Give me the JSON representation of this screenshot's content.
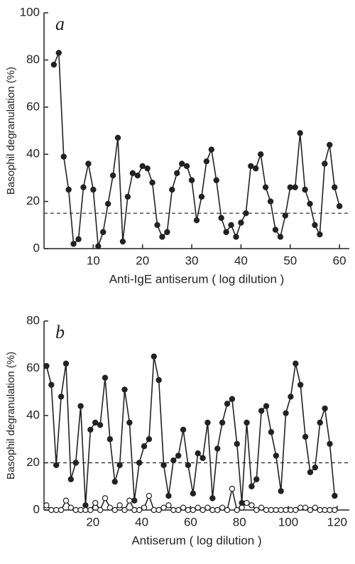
{
  "chart_data": [
    {
      "type": "line",
      "label": "a",
      "x_label": "Anti-IgE antiserum  ( log dilution )",
      "y_label": "Basophil degranulation (%)",
      "xlim": [
        0,
        62
      ],
      "xticks": [
        10,
        20,
        30,
        40,
        50,
        60
      ],
      "ylim": [
        0,
        100
      ],
      "yticks": [
        0,
        20,
        40,
        60,
        80,
        100
      ],
      "threshold": 15,
      "x": [
        2,
        3,
        4,
        5,
        6,
        7,
        8,
        9,
        10,
        11,
        12,
        13,
        14,
        15,
        16,
        17,
        18,
        19,
        20,
        21,
        22,
        23,
        24,
        25,
        26,
        27,
        28,
        29,
        30,
        31,
        32,
        33,
        34,
        35,
        36,
        37,
        38,
        39,
        40,
        41,
        42,
        43,
        44,
        45,
        46,
        47,
        48,
        49,
        50,
        51,
        52,
        53,
        54,
        55,
        56,
        57,
        58,
        59,
        60
      ],
      "series": [
        {
          "color": "#222",
          "marker_fill": "#222",
          "values": [
            78,
            83,
            39,
            25,
            2,
            4,
            26,
            36,
            25,
            1,
            7,
            19,
            31,
            47,
            3,
            22,
            32,
            31,
            35,
            34,
            28,
            10,
            5,
            7,
            25,
            32,
            36,
            35,
            29,
            12,
            22,
            37,
            42,
            29,
            13,
            7,
            10,
            5,
            11,
            15,
            35,
            34,
            40,
            26,
            20,
            8,
            5,
            14,
            26,
            26,
            49,
            25,
            19,
            10,
            6,
            36,
            44,
            26,
            18
          ]
        }
      ]
    },
    {
      "type": "line",
      "label": "b",
      "x_label": "Antiserum  ( log dilution )",
      "y_label": "Basophil degranulation (%)",
      "xlim": [
        0,
        125
      ],
      "xticks": [
        20,
        40,
        60,
        80,
        100,
        120
      ],
      "ylim": [
        0,
        80
      ],
      "yticks": [
        0,
        20,
        40,
        60,
        80
      ],
      "threshold": 20,
      "x": [
        1,
        3,
        5,
        7,
        9,
        11,
        13,
        15,
        17,
        19,
        21,
        23,
        25,
        27,
        29,
        31,
        33,
        35,
        37,
        39,
        41,
        43,
        45,
        47,
        49,
        51,
        53,
        55,
        57,
        59,
        61,
        63,
        65,
        67,
        69,
        71,
        73,
        75,
        77,
        79,
        81,
        83,
        85,
        87,
        89,
        91,
        93,
        95,
        97,
        99,
        101,
        103,
        105,
        107,
        109,
        111,
        113,
        115,
        117,
        119
      ],
      "series": [
        {
          "color": "#222",
          "marker_fill": "#222",
          "values": [
            61,
            53,
            19,
            48,
            62,
            13,
            20,
            44,
            2,
            34,
            37,
            36,
            56,
            30,
            12,
            19,
            51,
            37,
            4,
            20,
            27,
            30,
            65,
            55,
            19,
            6,
            21,
            23,
            34,
            19,
            7,
            24,
            22,
            37,
            5,
            26,
            37,
            45,
            47,
            28,
            3,
            37,
            10,
            13,
            42,
            44,
            33,
            23,
            8,
            41,
            48,
            62,
            53,
            31,
            16,
            18,
            37,
            43,
            28,
            6
          ]
        },
        {
          "color": "#222",
          "marker_fill": "#fff",
          "values": [
            2,
            0,
            0,
            0,
            4,
            1,
            0,
            0,
            0,
            0,
            3,
            0,
            5,
            1,
            0,
            2,
            0,
            4,
            0,
            0,
            1,
            6,
            0,
            0,
            1,
            2,
            0,
            0,
            1,
            0,
            0,
            1,
            0,
            1,
            0,
            0,
            1,
            0,
            9,
            0,
            1,
            3,
            2,
            0,
            1,
            0,
            0,
            0,
            0,
            0,
            0,
            0,
            1,
            1,
            0,
            1,
            0,
            0,
            0,
            0
          ]
        }
      ]
    }
  ]
}
